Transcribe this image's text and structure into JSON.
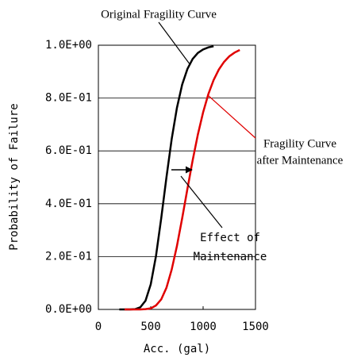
{
  "chart_data": {
    "type": "line",
    "xlabel": "Acc. (gal)",
    "ylabel": "Probability of Failure",
    "xlim": [
      0,
      1500
    ],
    "xticks": [
      0,
      500,
      1000,
      1500
    ],
    "ylim": [
      0,
      1
    ],
    "yticks": [
      {
        "value": 0,
        "label": "0.0E+00"
      },
      {
        "value": 0.2,
        "label": "2.0E-01"
      },
      {
        "value": 0.4,
        "label": "4.0E-01"
      },
      {
        "value": 0.6,
        "label": "6.0E-01"
      },
      {
        "value": 0.8,
        "label": "8.0E-01"
      },
      {
        "value": 1,
        "label": "1.0E+00"
      }
    ],
    "grid": true,
    "series": [
      {
        "color": "#000000",
        "x": [
          200,
          250,
          300,
          350,
          400,
          450,
          500,
          550,
          600,
          650,
          700,
          750,
          800,
          850,
          900,
          950,
          1000,
          1050,
          1100
        ],
        "values": [
          0,
          0,
          0.0001,
          0.001,
          0.008,
          0.033,
          0.095,
          0.202,
          0.345,
          0.5,
          0.645,
          0.763,
          0.851,
          0.91,
          0.948,
          0.971,
          0.984,
          0.992,
          0.996
        ]
      },
      {
        "color": "#e00000",
        "x": [
          250,
          300,
          350,
          400,
          450,
          500,
          550,
          600,
          650,
          700,
          750,
          800,
          850,
          900,
          950,
          1000,
          1050,
          1100,
          1150,
          1200,
          1250,
          1300,
          1350
        ],
        "values": [
          0,
          0,
          0,
          0.0001,
          0.001,
          0.004,
          0.015,
          0.038,
          0.082,
          0.151,
          0.24,
          0.345,
          0.456,
          0.564,
          0.662,
          0.746,
          0.815,
          0.868,
          0.908,
          0.937,
          0.958,
          0.972,
          0.982
        ]
      }
    ],
    "annotations": [
      "Original Fragility Curve",
      "Fragility Curve",
      "after Maintenance",
      "Effect of",
      "Maintenance"
    ]
  }
}
